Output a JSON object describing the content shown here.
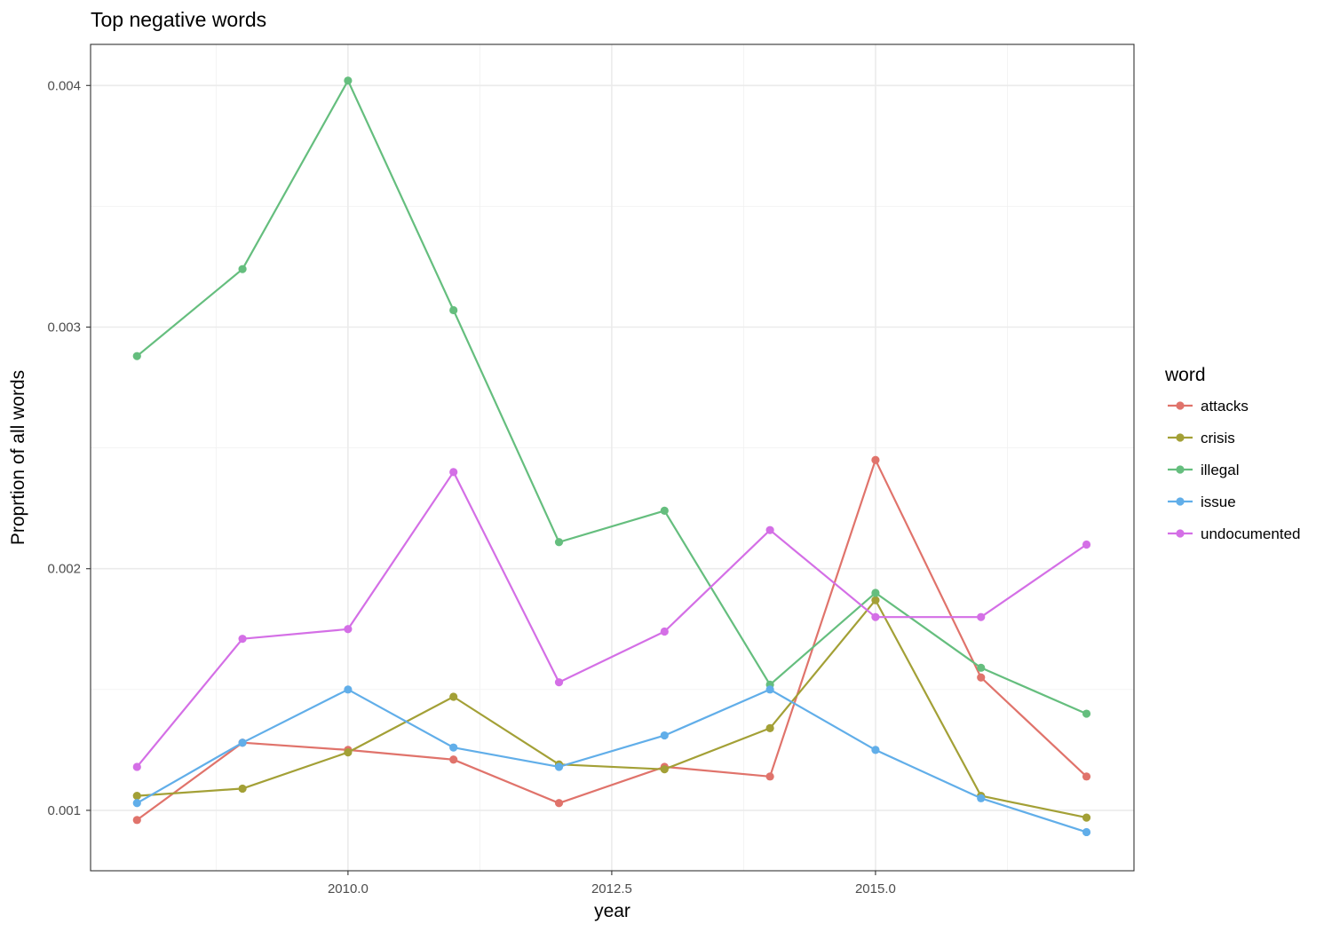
{
  "chart_data": {
    "type": "line",
    "title": "Top negative words",
    "xlabel": "year",
    "ylabel": "Proprtion of all words",
    "x": [
      2008,
      2009,
      2010,
      2011,
      2012,
      2013,
      2014,
      2015,
      2016,
      2017
    ],
    "xlim": [
      2007.56,
      2017.45
    ],
    "ylim": [
      0.00075,
      0.00417
    ],
    "x_ticks": [
      2010,
      2012.5,
      2015
    ],
    "x_tick_labels": [
      "2010.0",
      "2012.5",
      "2015.0"
    ],
    "y_ticks": [
      0.001,
      0.002,
      0.003,
      0.004
    ],
    "y_tick_labels": [
      "0.001",
      "0.002",
      "0.003",
      "0.004"
    ],
    "grid": true,
    "legend": {
      "title": "word",
      "position": "right"
    },
    "series": [
      {
        "name": "attacks",
        "color": "#E0736B",
        "values": [
          0.00096,
          0.00128,
          0.00125,
          0.00121,
          0.00103,
          0.00118,
          0.00114,
          0.00245,
          0.00155,
          0.00114
        ]
      },
      {
        "name": "crisis",
        "color": "#A3A036",
        "values": [
          0.00106,
          0.00109,
          0.00124,
          0.00147,
          0.00119,
          0.00117,
          0.00134,
          0.00187,
          0.00106,
          0.00097
        ]
      },
      {
        "name": "illegal",
        "color": "#65BE7E",
        "values": [
          0.00288,
          0.00324,
          0.00402,
          0.00307,
          0.00211,
          0.00224,
          0.00152,
          0.0019,
          0.00159,
          0.0014
        ]
      },
      {
        "name": "issue",
        "color": "#61AEE9",
        "values": [
          0.00103,
          0.00128,
          0.0015,
          0.00126,
          0.00118,
          0.00131,
          0.0015,
          0.00125,
          0.00105,
          0.00091
        ]
      },
      {
        "name": "undocumented",
        "color": "#D46FE6",
        "values": [
          0.00118,
          0.00171,
          0.00175,
          0.0024,
          0.00153,
          0.00174,
          0.00216,
          0.0018,
          0.0018,
          0.0021
        ]
      }
    ]
  }
}
